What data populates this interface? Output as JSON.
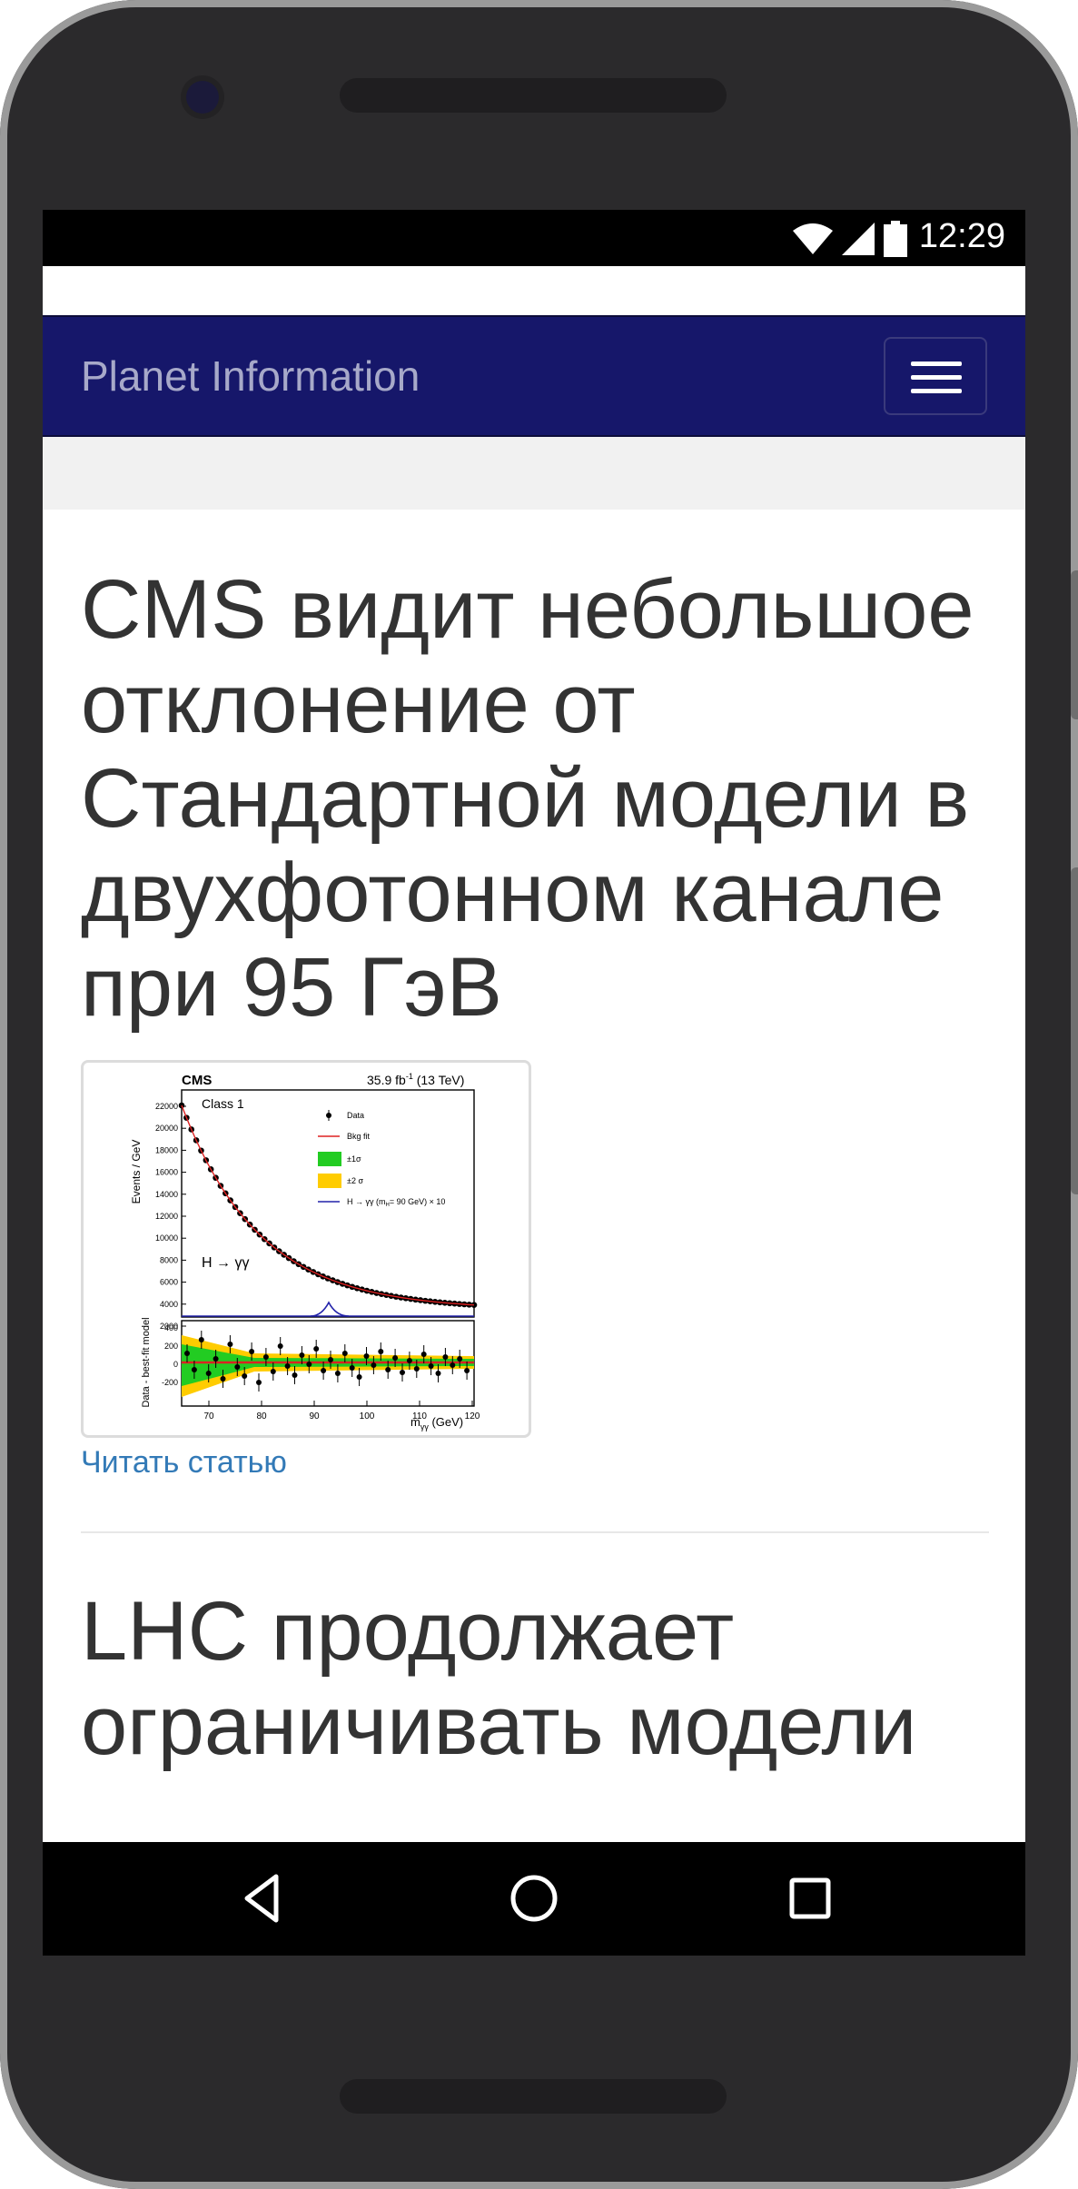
{
  "status_bar": {
    "time": "12:29"
  },
  "navbar": {
    "brand": "Planet Information"
  },
  "articles": [
    {
      "title": "CMS видит небольшое отклонение от Стандартной модели в двухфотонном канале при 95 ГэВ",
      "link_text": "Читать статью"
    },
    {
      "title": "LHC продолжает ограничивать модели"
    }
  ],
  "thumbnail": {
    "experiment": "CMS",
    "lumi": "35.9 fb",
    "lumi_sup": "-1",
    "energy": " (13 TeV)",
    "class_label": "Class 1",
    "process": "H → γγ",
    "ylabel_top": "Events / GeV",
    "ylabel_bottom": "Data - best-fit model",
    "xlabel": "m",
    "xlabel_sub": "γγ",
    "xlabel_unit": " (GeV)",
    "legend": [
      "Data",
      "Bkg fit",
      "±1σ",
      "±2 σ",
      "H → γγ (m",
      "= 90 GeV) × 10"
    ],
    "legend_sub": "H",
    "y_ticks_top": [
      "22000",
      "20000",
      "18000",
      "16000",
      "14000",
      "12000",
      "10000",
      "8000",
      "6000",
      "4000",
      "2000"
    ],
    "y_ticks_bottom": [
      "400",
      "200",
      "0",
      "-200"
    ],
    "x_ticks": [
      "70",
      "80",
      "90",
      "100",
      "110",
      "120"
    ],
    "colors": {
      "band1": "#22cc22",
      "band2": "#ffcc00",
      "fit": "#dd2222",
      "signal": "#2222aa"
    }
  }
}
